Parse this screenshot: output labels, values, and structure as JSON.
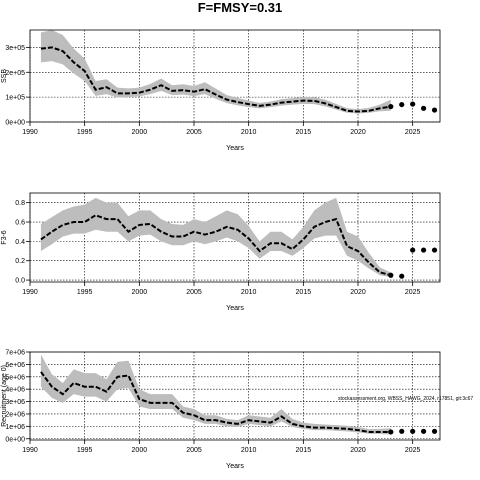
{
  "title": "F=FMSY=0.31",
  "note": "stockassessment.org, WBSS_HAWG_2024, r17851, git:3c67",
  "chart_data": [
    {
      "type": "line",
      "name": "panel-ssb",
      "title": "",
      "xlabel": "Years",
      "ylabel": "SSB",
      "xlim": [
        1990,
        2027.5
      ],
      "ylim": [
        0,
        370000
      ],
      "xticks": [
        1990,
        1995,
        2000,
        2005,
        2010,
        2015,
        2020,
        2025
      ],
      "yticks": [
        0,
        100000,
        200000,
        300000
      ],
      "ytick_labels": [
        "0e+00",
        "1e+05",
        "2e+05",
        "3e+05"
      ],
      "grid": true,
      "x": [
        1991,
        1992,
        1993,
        1994,
        1995,
        1996,
        1997,
        1998,
        1999,
        2000,
        2001,
        2002,
        2003,
        2004,
        2005,
        2006,
        2007,
        2008,
        2009,
        2010,
        2011,
        2012,
        2013,
        2014,
        2015,
        2016,
        2017,
        2018,
        2019,
        2020,
        2021,
        2022,
        2023
      ],
      "estimate": [
        295000,
        300000,
        285000,
        240000,
        205000,
        130000,
        140000,
        115000,
        115000,
        118000,
        130000,
        148000,
        125000,
        128000,
        122000,
        132000,
        110000,
        90000,
        80000,
        72000,
        65000,
        70000,
        78000,
        82000,
        86000,
        85000,
        75000,
        60000,
        45000,
        42000,
        45000,
        55000,
        62000
      ],
      "lower": [
        240000,
        245000,
        232000,
        195000,
        165000,
        105000,
        112000,
        98000,
        100000,
        103000,
        112000,
        125000,
        108000,
        110000,
        104000,
        112000,
        93000,
        76000,
        67000,
        60000,
        55000,
        60000,
        66000,
        70000,
        73000,
        72000,
        63000,
        50000,
        37000,
        34000,
        37000,
        43000,
        45000
      ],
      "upper": [
        360000,
        370000,
        350000,
        295000,
        255000,
        165000,
        172000,
        138000,
        135000,
        138000,
        153000,
        175000,
        148000,
        152000,
        145000,
        160000,
        134000,
        108000,
        97000,
        86000,
        77000,
        82000,
        92000,
        96000,
        101000,
        100000,
        90000,
        73000,
        56000,
        52000,
        57000,
        70000,
        90000
      ],
      "forecast_x": [
        2023,
        2024,
        2025,
        2026,
        2027
      ],
      "forecast_y": [
        62000,
        70000,
        72000,
        55000,
        48000
      ]
    },
    {
      "type": "line",
      "name": "panel-fishing-mortality",
      "title": "",
      "xlabel": "Years",
      "ylabel": "F3-6",
      "xlim": [
        1990,
        2027.5
      ],
      "ylim": [
        -0.02,
        0.9
      ],
      "xticks": [
        1990,
        1995,
        2000,
        2005,
        2010,
        2015,
        2020,
        2025
      ],
      "yticks": [
        0,
        0.2,
        0.4,
        0.6,
        0.8
      ],
      "ytick_labels": [
        "0.0",
        "0.2",
        "0.4",
        "0.6",
        "0.8"
      ],
      "grid": true,
      "x": [
        1991,
        1992,
        1993,
        1994,
        1995,
        1996,
        1997,
        1998,
        1999,
        2000,
        2001,
        2002,
        2003,
        2004,
        2005,
        2006,
        2007,
        2008,
        2009,
        2010,
        2011,
        2012,
        2013,
        2014,
        2015,
        2016,
        2017,
        2018,
        2019,
        2020,
        2021,
        2022,
        2023
      ],
      "estimate": [
        0.42,
        0.5,
        0.57,
        0.6,
        0.6,
        0.67,
        0.63,
        0.63,
        0.5,
        0.57,
        0.58,
        0.5,
        0.45,
        0.45,
        0.5,
        0.47,
        0.5,
        0.55,
        0.52,
        0.43,
        0.3,
        0.38,
        0.38,
        0.32,
        0.42,
        0.55,
        0.6,
        0.63,
        0.35,
        0.3,
        0.18,
        0.08,
        0.05
      ],
      "lower": [
        0.3,
        0.37,
        0.45,
        0.48,
        0.48,
        0.52,
        0.5,
        0.5,
        0.4,
        0.46,
        0.47,
        0.4,
        0.36,
        0.36,
        0.4,
        0.37,
        0.4,
        0.44,
        0.4,
        0.33,
        0.22,
        0.3,
        0.3,
        0.25,
        0.33,
        0.43,
        0.46,
        0.46,
        0.25,
        0.2,
        0.12,
        0.05,
        0.03
      ],
      "upper": [
        0.58,
        0.65,
        0.72,
        0.76,
        0.78,
        0.85,
        0.8,
        0.8,
        0.66,
        0.72,
        0.72,
        0.63,
        0.58,
        0.57,
        0.63,
        0.6,
        0.66,
        0.72,
        0.68,
        0.56,
        0.4,
        0.5,
        0.5,
        0.42,
        0.55,
        0.72,
        0.8,
        0.85,
        0.5,
        0.45,
        0.28,
        0.13,
        0.08
      ],
      "forecast_x": [
        2023,
        2024,
        2025,
        2026,
        2027
      ],
      "forecast_y": [
        0.05,
        0.04,
        0.31,
        0.31,
        0.31
      ]
    },
    {
      "type": "line",
      "name": "panel-recruitment",
      "title": "",
      "xlabel": "Years",
      "ylabel": "Recruitment (age 0)",
      "xlim": [
        1990,
        2027.5
      ],
      "ylim": [
        -100000,
        7000000
      ],
      "xticks": [
        1990,
        1995,
        2000,
        2005,
        2010,
        2015,
        2020,
        2025
      ],
      "yticks": [
        0,
        1000000,
        2000000,
        3000000,
        4000000,
        5000000,
        6000000,
        7000000
      ],
      "ytick_labels": [
        "0e+00",
        "1e+06",
        "2e+06",
        "3e+06",
        "4e+06",
        "5e+06",
        "6e+06",
        "7e+06"
      ],
      "grid": true,
      "x": [
        1991,
        1992,
        1993,
        1994,
        1995,
        1996,
        1997,
        1998,
        1999,
        2000,
        2001,
        2002,
        2003,
        2004,
        2005,
        2006,
        2007,
        2008,
        2009,
        2010,
        2011,
        2012,
        2013,
        2014,
        2015,
        2016,
        2017,
        2018,
        2019,
        2020,
        2021,
        2022,
        2023
      ],
      "estimate": [
        5400000,
        4200000,
        3600000,
        4500000,
        4200000,
        4200000,
        3800000,
        5000000,
        5100000,
        3200000,
        2900000,
        2900000,
        2900000,
        2100000,
        1900000,
        1500000,
        1500000,
        1300000,
        1200000,
        1500000,
        1400000,
        1300000,
        1800000,
        1200000,
        1000000,
        900000,
        900000,
        850000,
        800000,
        700000,
        550000,
        550000,
        550000
      ],
      "lower": [
        4200000,
        3300000,
        2900000,
        3600000,
        3400000,
        3400000,
        3000000,
        4000000,
        4100000,
        2600000,
        2400000,
        2400000,
        2400000,
        1700000,
        1500000,
        1200000,
        1200000,
        1000000,
        950000,
        1200000,
        1100000,
        1000000,
        1400000,
        950000,
        800000,
        700000,
        700000,
        650000,
        600000,
        520000,
        400000,
        380000,
        350000
      ],
      "upper": [
        6800000,
        5200000,
        4500000,
        5600000,
        5300000,
        5300000,
        4800000,
        6200000,
        6300000,
        4000000,
        3600000,
        3600000,
        3600000,
        2600000,
        2400000,
        1900000,
        1900000,
        1600000,
        1500000,
        1900000,
        1800000,
        1700000,
        2400000,
        1600000,
        1300000,
        1200000,
        1150000,
        1100000,
        1050000,
        950000,
        780000,
        800000,
        850000
      ],
      "forecast_x": [
        2023,
        2024,
        2025,
        2026,
        2027
      ],
      "forecast_y": [
        550000,
        600000,
        600000,
        600000,
        600000
      ]
    }
  ]
}
